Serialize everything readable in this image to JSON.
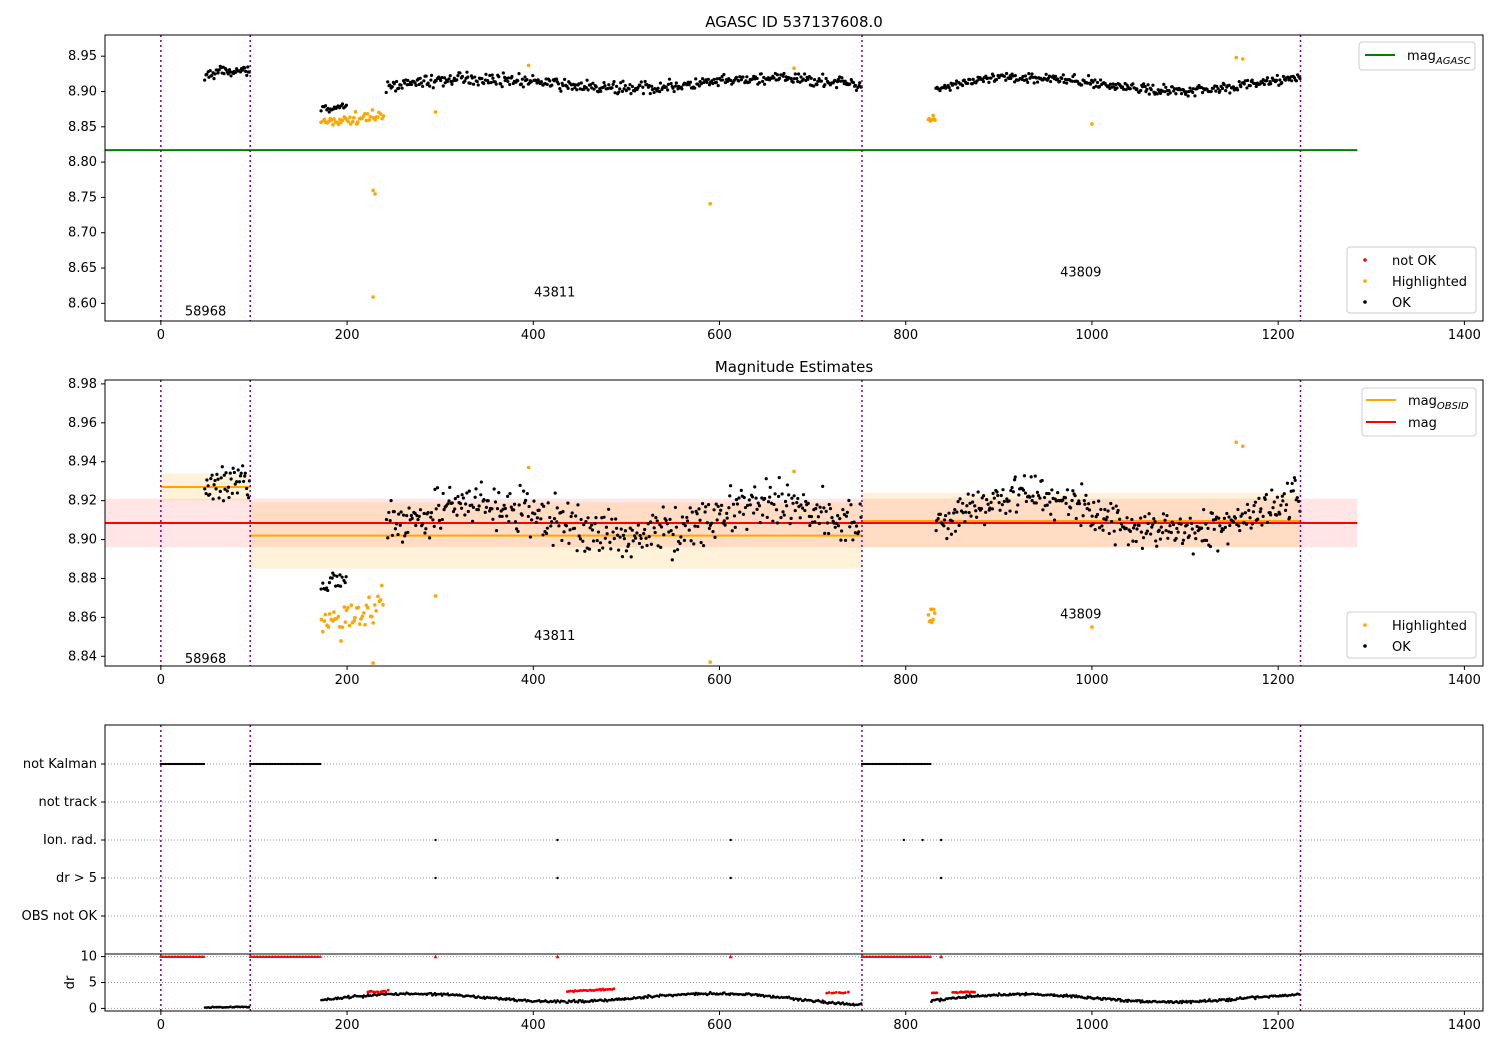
{
  "figure": {
    "panel1_title": "AGASC ID 537137608.0",
    "panel2_title": "Magnitude Estimates"
  },
  "colors": {
    "ok": "#000000",
    "highlighted": "#ffa500",
    "not_ok": "#ff0000",
    "mag_agasc": "#008000",
    "mag_obsid": "#ffa500",
    "mag": "#ff0000",
    "obsid_boundary": "#800080"
  },
  "chart_data": [
    {
      "type": "scatter",
      "title": "AGASC ID 537137608.0",
      "xlabel": "",
      "ylabel": "",
      "xlim": [
        -60,
        1420
      ],
      "ylim": [
        8.575,
        8.98
      ],
      "x_ticks": [
        0,
        200,
        400,
        600,
        800,
        1000,
        1200,
        1400
      ],
      "y_ticks": [
        8.6,
        8.65,
        8.7,
        8.75,
        8.8,
        8.85,
        8.9,
        8.95
      ],
      "grid": false,
      "obsid_boundaries": [
        0,
        96,
        753,
        1224
      ],
      "obsid_labels": [
        {
          "text": "58968",
          "x": 48,
          "y": 8.59
        },
        {
          "text": "43811",
          "x": 423,
          "y": 8.617
        },
        {
          "text": "43809",
          "x": 988,
          "y": 8.645
        }
      ],
      "lines": [
        {
          "name": "mag_AGASC",
          "label_main": "mag",
          "label_sub": "AGASC",
          "y": 8.817,
          "x": [
            -60,
            1285
          ],
          "color": "#008000"
        }
      ],
      "legends": [
        {
          "position": "top-right",
          "entries": [
            {
              "main": "mag",
              "sub": "AGASC",
              "kind": "line",
              "color": "#008000"
            }
          ]
        },
        {
          "position": "bottom-right",
          "entries": [
            {
              "main": "not OK",
              "kind": "point",
              "color": "#ff0000"
            },
            {
              "main": "Highlighted",
              "kind": "point",
              "color": "#ffa500"
            },
            {
              "main": "OK",
              "kind": "point",
              "color": "#000000"
            }
          ]
        }
      ],
      "series": [
        {
          "name": "OK",
          "color": "#000000",
          "segments": [
            {
              "x0": 47,
              "x1": 96,
              "base": 8.925,
              "amp": 0.006,
              "noise": 0.006,
              "n": 45
            },
            {
              "x0": 172,
              "x1": 200,
              "base": 8.876,
              "amp": 0.003,
              "noise": 0.004,
              "n": 20
            },
            {
              "x0": 242,
              "x1": 753,
              "base": 8.907,
              "amp": 0.008,
              "noise": 0.007,
              "n": 420
            },
            {
              "x0": 832,
              "x1": 1224,
              "base": 8.905,
              "amp": 0.011,
              "noise": 0.006,
              "n": 330
            }
          ]
        },
        {
          "name": "Highlighted",
          "color": "#ffa500",
          "segments": [
            {
              "x0": 172,
              "x1": 240,
              "base": 8.857,
              "amp": 0.006,
              "noise": 0.007,
              "n": 45
            },
            {
              "x0": 824,
              "x1": 832,
              "base": 8.861,
              "amp": 0.002,
              "noise": 0.004,
              "n": 8
            }
          ],
          "points": [
            {
              "x": 228,
              "y": 8.76
            },
            {
              "x": 230,
              "y": 8.755
            },
            {
              "x": 228,
              "y": 8.609
            },
            {
              "x": 590,
              "y": 8.741
            },
            {
              "x": 295,
              "y": 8.871
            },
            {
              "x": 1000,
              "y": 8.854
            },
            {
              "x": 395,
              "y": 8.937
            },
            {
              "x": 680,
              "y": 8.933
            },
            {
              "x": 1155,
              "y": 8.948
            },
            {
              "x": 1162,
              "y": 8.946
            }
          ]
        }
      ]
    },
    {
      "type": "scatter",
      "title": "Magnitude Estimates",
      "xlabel": "",
      "ylabel": "",
      "xlim": [
        -60,
        1420
      ],
      "ylim": [
        8.835,
        8.982
      ],
      "x_ticks": [
        0,
        200,
        400,
        600,
        800,
        1000,
        1200,
        1400
      ],
      "y_ticks": [
        8.84,
        8.86,
        8.88,
        8.9,
        8.92,
        8.94,
        8.96,
        8.98
      ],
      "grid": false,
      "obsid_boundaries": [
        0,
        96,
        753,
        1224
      ],
      "obsid_labels": [
        {
          "text": "58968",
          "x": 48,
          "y": 8.839
        },
        {
          "text": "43811",
          "x": 423,
          "y": 8.851
        },
        {
          "text": "43809",
          "x": 988,
          "y": 8.862
        }
      ],
      "bands": [
        {
          "name": "mag",
          "x0": -60,
          "x1": 1285,
          "y0": 8.896,
          "y1": 8.921,
          "color": "#ff0000",
          "opacity": 0.1
        },
        {
          "name": "mag_OBSID 58968",
          "x0": 0,
          "x1": 96,
          "y0": 8.92,
          "y1": 8.934,
          "color": "#ffa500",
          "opacity": 0.15
        },
        {
          "name": "mag_OBSID 43811",
          "x0": 96,
          "x1": 753,
          "y0": 8.885,
          "y1": 8.919,
          "color": "#ffa500",
          "opacity": 0.15
        },
        {
          "name": "mag_OBSID 43809",
          "x0": 753,
          "x1": 1224,
          "y0": 8.896,
          "y1": 8.924,
          "color": "#ffa500",
          "opacity": 0.15
        }
      ],
      "lines": [
        {
          "name": "mag",
          "y": 8.9085,
          "x": [
            -60,
            1285
          ],
          "color": "#ff0000"
        },
        {
          "name": "mag_OBSID 58968",
          "y": 8.927,
          "x": [
            0,
            96
          ],
          "color": "#ffa500"
        },
        {
          "name": "mag_OBSID 43811",
          "y": 8.902,
          "x": [
            96,
            753
          ],
          "color": "#ffa500"
        },
        {
          "name": "mag_OBSID 43809",
          "y": 8.9095,
          "x": [
            753,
            1224
          ],
          "color": "#ffa500"
        }
      ],
      "legends": [
        {
          "position": "top-right",
          "entries": [
            {
              "main": "mag",
              "sub": "OBSID",
              "kind": "line",
              "color": "#ffa500"
            },
            {
              "main": "mag",
              "kind": "line",
              "color": "#ff0000"
            }
          ]
        },
        {
          "position": "bottom-right",
          "entries": [
            {
              "main": "Highlighted",
              "kind": "point",
              "color": "#ffa500"
            },
            {
              "main": "OK",
              "kind": "point",
              "color": "#000000"
            }
          ]
        }
      ],
      "series": [
        {
          "name": "OK",
          "color": "#000000",
          "segments": [
            {
              "x0": 47,
              "x1": 96,
              "base": 8.926,
              "amp": 0.006,
              "noise": 0.008,
              "n": 45
            },
            {
              "x0": 172,
              "x1": 200,
              "base": 8.877,
              "amp": 0.003,
              "noise": 0.005,
              "n": 20
            },
            {
              "x0": 242,
              "x1": 753,
              "base": 8.905,
              "amp": 0.009,
              "noise": 0.01,
              "n": 420
            },
            {
              "x0": 832,
              "x1": 1224,
              "base": 8.907,
              "amp": 0.012,
              "noise": 0.009,
              "n": 330
            }
          ]
        },
        {
          "name": "Highlighted",
          "color": "#ffa500",
          "segments": [
            {
              "x0": 172,
              "x1": 240,
              "base": 8.856,
              "amp": 0.007,
              "noise": 0.008,
              "n": 45
            },
            {
              "x0": 824,
              "x1": 832,
              "base": 8.861,
              "amp": 0.003,
              "noise": 0.005,
              "n": 8
            }
          ],
          "points": [
            {
              "x": 295,
              "y": 8.871
            },
            {
              "x": 1000,
              "y": 8.855
            },
            {
              "x": 395,
              "y": 8.937
            },
            {
              "x": 680,
              "y": 8.935
            },
            {
              "x": 1155,
              "y": 8.95
            },
            {
              "x": 1162,
              "y": 8.948
            },
            {
              "x": 228,
              "y": 8.8365
            },
            {
              "x": 590,
              "y": 8.837
            }
          ]
        }
      ]
    },
    {
      "type": "scatter",
      "title": "",
      "xlabel": "",
      "ylabel": "",
      "xlim": [
        -60,
        1420
      ],
      "categories": [
        "not Kalman",
        "not track",
        "Ion. rad.",
        "dr > 5",
        "OBS not OK"
      ],
      "grid": "horizontal dotted",
      "obsid_boundaries": [
        0,
        96,
        753,
        1224
      ],
      "flags": [
        {
          "category": "not Kalman",
          "ranges": [
            [
              0,
              47
            ],
            [
              96,
              172
            ],
            [
              753,
              827
            ]
          ],
          "points": []
        },
        {
          "category": "not track",
          "ranges": [],
          "points": []
        },
        {
          "category": "Ion. rad.",
          "ranges": [],
          "points": [
            295,
            426,
            612,
            798,
            818,
            838
          ]
        },
        {
          "category": "dr > 5",
          "ranges": [],
          "points": [
            295,
            426,
            612,
            838
          ]
        },
        {
          "category": "OBS not OK",
          "ranges": [],
          "points": []
        }
      ]
    },
    {
      "type": "scatter",
      "title": "",
      "xlabel": "",
      "ylabel": "dr",
      "xlim": [
        -60,
        1420
      ],
      "ylim": [
        -0.5,
        10.5
      ],
      "x_ticks": [
        0,
        200,
        400,
        600,
        800,
        1000,
        1200,
        1400
      ],
      "y_ticks": [
        0,
        5,
        10
      ],
      "grid": "horizontal dotted",
      "obsid_boundaries": [
        0,
        96,
        753,
        1224
      ],
      "saturated_value": 10,
      "saturated_ranges": [
        [
          0,
          47
        ],
        [
          96,
          172
        ],
        [
          753,
          827
        ]
      ],
      "saturated_points": [
        295,
        426,
        612,
        838
      ],
      "series": [
        {
          "name": "dr",
          "color": "#000000",
          "segments": [
            {
              "x0": 47,
              "x1": 96,
              "base": 0.2,
              "amp": 0.1,
              "noise": 0.1,
              "n": 30
            },
            {
              "x0": 172,
              "x1": 753,
              "base": 1.6,
              "amp": 0.9,
              "noise": 0.2,
              "n": 420
            },
            {
              "x0": 827,
              "x1": 1224,
              "base": 1.5,
              "amp": 0.9,
              "noise": 0.2,
              "n": 300
            }
          ]
        },
        {
          "name": "dr (not OK)",
          "color": "#ff0000",
          "segments": [
            {
              "x0": 222,
              "x1": 245,
              "base": 3.2,
              "amp": 0.2,
              "noise": 0.2,
              "n": 12
            },
            {
              "x0": 436,
              "x1": 488,
              "base": 3.3,
              "amp": 0.4,
              "noise": 0.1,
              "n": 30
            },
            {
              "x0": 715,
              "x1": 740,
              "base": 3.0,
              "amp": 0.1,
              "noise": 0.1,
              "n": 10
            },
            {
              "x0": 828,
              "x1": 835,
              "base": 3.0,
              "amp": 0.1,
              "noise": 0.1,
              "n": 4
            },
            {
              "x0": 850,
              "x1": 875,
              "base": 3.1,
              "amp": 0.1,
              "noise": 0.1,
              "n": 14
            }
          ]
        }
      ]
    }
  ]
}
